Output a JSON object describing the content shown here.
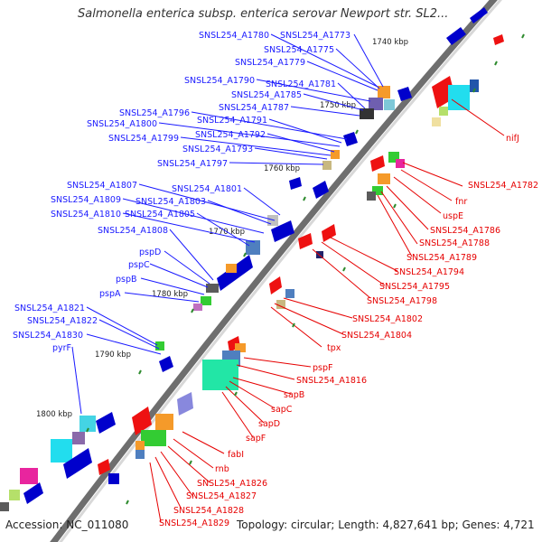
{
  "title": "Salmonella enterica subsp. enterica serovar Newport str. SL2...",
  "footer": {
    "accession": "Accession: NC_011080",
    "summary": "Topology: circular; Length: 4,827,641 bp; Genes: 4,721"
  },
  "colors": {
    "left_label": "#1a1aff",
    "right_label": "#e60000",
    "backbone": "#8c8c8c"
  },
  "kbp_ticks": [
    "1740 kbp",
    "1750 kbp",
    "1760 kbp",
    "1770 kbp",
    "1780 kbp",
    "1790 kbp",
    "1800 kbp"
  ],
  "left_labels": [
    "SNSL254_A1780",
    "SNSL254_A1773",
    "SNSL254_A1775",
    "SNSL254_A1779",
    "SNSL254_A1790",
    "SNSL254_A1781",
    "SNSL254_A1785",
    "SNSL254_A1787",
    "SNSL254_A1796",
    "SNSL254_A1791",
    "SNSL254_A1800",
    "SNSL254_A1792",
    "SNSL254_A1799",
    "SNSL254_A1793",
    "SNSL254_A1797",
    "SNSL254_A1801",
    "SNSL254_A1807",
    "SNSL254_A1803",
    "SNSL254_A1809",
    "SNSL254_A1810",
    "SNSL254_A1805",
    "SNSL254_A1808",
    "pspD",
    "pspC",
    "pspB",
    "pspA",
    "SNSL254_A1821",
    "SNSL254_A1822",
    "SNSL254_A1830",
    "pyrF"
  ],
  "right_labels": [
    "nifJ",
    "SNSL254_A1782",
    "fnr",
    "uspE",
    "SNSL254_A1786",
    "SNSL254_A1788",
    "SNSL254_A1789",
    "SNSL254_A1794",
    "SNSL254_A1795",
    "SNSL254_A1798",
    "SNSL254_A1802",
    "SNSL254_A1804",
    "tpx",
    "pspF",
    "SNSL254_A1816",
    "sapB",
    "sapC",
    "sapD",
    "sapF",
    "fabI",
    "rnb",
    "SNSL254_A1826",
    "SNSL254_A1827",
    "SNSL254_A1828",
    "SNSL254_A1829"
  ]
}
